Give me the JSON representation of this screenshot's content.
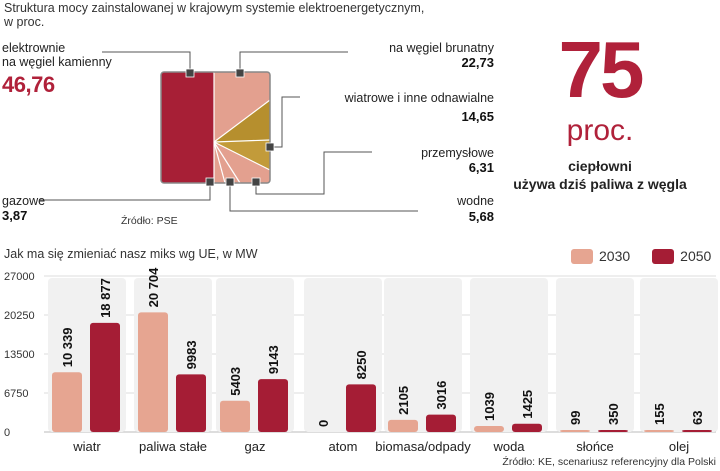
{
  "top": {
    "title_line1": "Struktura mocy zainstalowanej w krajowym systemie elektroenergetycznym,",
    "title_line2": "w proc.",
    "source": "Źródło: PSE",
    "slices": [
      {
        "label_line1": "elektrownie",
        "label_line2": "na węgiel kamienny",
        "value": "46,76"
      },
      {
        "label_line1": "na węgiel brunatny",
        "label_line2": "",
        "value": "22,73"
      },
      {
        "label_line1": "wiatrowe i inne odnawialne",
        "label_line2": "",
        "value": "14,65"
      },
      {
        "label_line1": "przemysłowe",
        "label_line2": "",
        "value": "6,31"
      },
      {
        "label_line1": "wodne",
        "label_line2": "",
        "value": "5,68"
      },
      {
        "label_line1": "gazowe",
        "label_line2": "",
        "value": "3,87"
      }
    ]
  },
  "callout": {
    "number": "75",
    "unit": "proc.",
    "text_line1": "ciepłowni",
    "text_line2": "używa dziś paliwa z węgla"
  },
  "bottom": {
    "title": "Jak ma się zmieniać nasz miks wg UE, w MW",
    "source": "Źródło: KE, scenariusz referencyjny dla Polski",
    "legend": [
      "2030",
      "2050"
    ]
  },
  "colors": {
    "coal": "#a71f36",
    "lignite": "#e3a08f",
    "wind": "#b68f2e",
    "light": "#e6a591",
    "dark": "#a51d35",
    "accent": "#b0213a"
  },
  "chart_data": [
    {
      "type": "pie",
      "title": "Struktura mocy zainstalowanej w krajowym systemie elektroenergetycznym, w proc.",
      "categories": [
        "elektrownie na węgiel kamienny",
        "na węgiel brunatny",
        "wiatrowe i inne odnawialne",
        "przemysłowe",
        "wodne",
        "gazowe"
      ],
      "values": [
        46.76,
        22.73,
        14.65,
        6.31,
        5.68,
        3.87
      ]
    },
    {
      "type": "bar",
      "title": "Jak ma się zmieniać nasz miks wg UE, w MW",
      "categories": [
        "wiatr",
        "paliwa stałe",
        "gaz",
        "atom",
        "biomasa/odpady",
        "woda",
        "słońce",
        "olej"
      ],
      "series": [
        {
          "name": "2030",
          "values": [
            10339,
            20704,
            5403,
            0,
            2105,
            1039,
            99,
            155
          ],
          "labels": [
            "10 339",
            "20 704",
            "5403",
            "0",
            "2105",
            "1039",
            "99",
            "155"
          ]
        },
        {
          "name": "2050",
          "values": [
            18877,
            9983,
            9143,
            8250,
            3016,
            1425,
            350,
            63
          ],
          "labels": [
            "18 877",
            "9983",
            "9143",
            "8250",
            "3016",
            "1425",
            "350",
            "63"
          ]
        }
      ],
      "yticks": [
        "27000",
        "20250",
        "13500",
        "6750",
        "0"
      ],
      "ylim": [
        0,
        27000
      ]
    }
  ]
}
